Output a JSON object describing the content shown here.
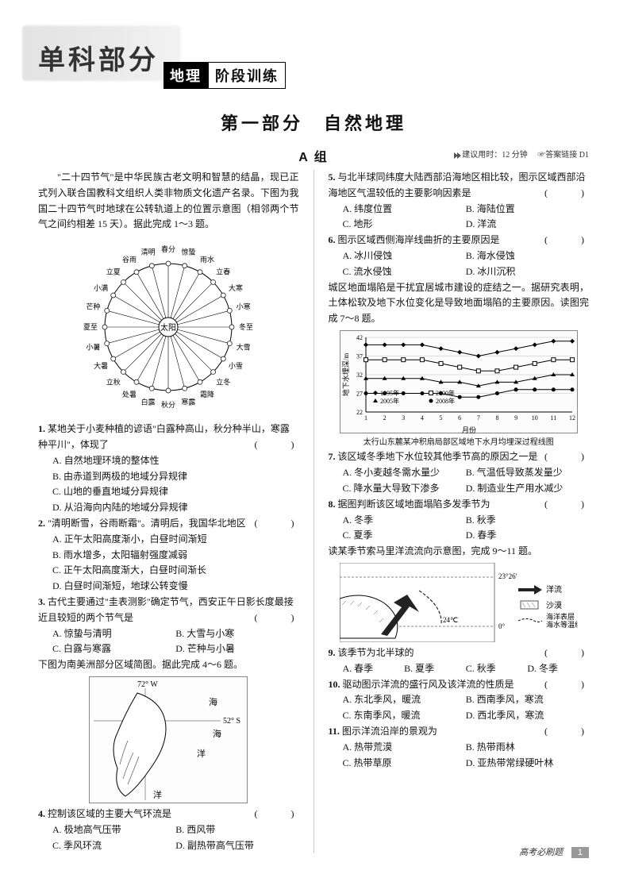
{
  "header": {
    "main": "单科部分",
    "sub_black": "地理",
    "sub_outline": "阶段训练"
  },
  "section_title": "第一部分　自然地理",
  "group_label": "A 组",
  "meta": {
    "time": "建议用时：12 分钟",
    "answer": "☞答案链接 D1"
  },
  "left": {
    "intro": "\"二十四节气\"是中华民族古老文明和智慧的结晶，现已正式列入联合国教科文组织人类非物质文化遗产名录。下图为我国二十四节气时地球在公转轨道上的位置示意图（相邻两个节气之间约相差 15 天）。据此完成 1～3 题。",
    "solar_terms": [
      "春分",
      "惊蛰",
      "雨水",
      "立春",
      "大寒",
      "小寒",
      "冬至",
      "大雪",
      "小雪",
      "立冬",
      "霜降",
      "寒露",
      "秋分",
      "白露",
      "处暑",
      "立秋",
      "大暑",
      "小暑",
      "夏至",
      "芒种",
      "小满",
      "立夏",
      "谷雨",
      "清明"
    ],
    "sun": "太阳",
    "q1": {
      "stem": "某地关于小麦种植的谚语\"白露种高山，秋分种半山，寒露种平川\"，体现了",
      "A": "A. 自然地理环境的整体性",
      "B": "B. 由赤道到两极的地域分异规律",
      "C": "C. 山地的垂直地域分异规律",
      "D": "D. 从沿海向内陆的地域分异规律"
    },
    "q2": {
      "stem": "\"清明断雪，谷雨断霜\"。清明后，我国华北地区",
      "A": "A. 正午太阳高度渐小，白昼时间渐短",
      "B": "B. 雨水增多，太阳辐射强度减弱",
      "C": "C. 正午太阳高度渐大，白昼时间渐长",
      "D": "D. 白昼时间渐短，地球公转变慢"
    },
    "q3": {
      "stem": "古代主要通过\"圭表测影\"确定节气，西安正午日影长度最接近且较短的两个节气是",
      "A": "A. 惊蛰与清明",
      "B": "B. 大雪与小寒",
      "C": "C. 白露与寒露",
      "D": "D. 芒种与小暑"
    },
    "intro2": "下图为南美洲部分区域简图。据此完成 4～6 题。",
    "map1": {
      "lon": "72° W",
      "lat": "52° S",
      "sea": "海",
      "ocean": "洋"
    },
    "q4": {
      "stem": "控制该区域的主要大气环流是",
      "A": "A. 极地高气压带",
      "B": "B. 西风带",
      "C": "C. 季风环流",
      "D": "D. 副热带高气压带"
    }
  },
  "right": {
    "q5": {
      "stem": "与北半球同纬度大陆西部沿海地区相比较，图示区域西部沿海地区气温较低的主要影响因素是",
      "A": "A. 纬度位置",
      "B": "B. 海陆位置",
      "C": "C. 地形",
      "D": "D. 洋流"
    },
    "q6": {
      "stem": "图示区域西侧海岸线曲折的主要原因是",
      "A": "A. 冰川侵蚀",
      "B": "B. 海水侵蚀",
      "C": "C. 流水侵蚀",
      "D": "D. 冰川沉积"
    },
    "intro3": "城区地面塌陷是干扰宜居城市建设的症结之一。据研究表明，土体松软及地下水位变化是导致地面塌陷的主要原因。读图完成 7～8 题。",
    "chart": {
      "ylabel": "地下水埋深/m",
      "xlabel": "月份",
      "caption": "太行山东麓某冲积扇局部区域地下水月均埋深过程线图",
      "months": [
        "1",
        "2",
        "3",
        "4",
        "5",
        "6",
        "7",
        "8",
        "9",
        "10",
        "11",
        "12"
      ],
      "ymin": 22,
      "ymax": 42,
      "ystep": 5,
      "series": [
        {
          "name": "1995年",
          "marker": "diamond",
          "color": "#000",
          "y": [
            40,
            40,
            40,
            40,
            39,
            38,
            37,
            38,
            39,
            40,
            41,
            41
          ]
        },
        {
          "name": "2000年",
          "marker": "square",
          "color": "#000",
          "y": [
            36,
            36,
            36,
            36,
            35,
            34,
            33,
            33,
            34,
            35,
            36,
            36
          ]
        },
        {
          "name": "2005年",
          "marker": "triangle",
          "color": "#000",
          "y": [
            31,
            31,
            31,
            31,
            30,
            30,
            29,
            30,
            30,
            31,
            32,
            32
          ]
        },
        {
          "name": "2008年",
          "marker": "circle",
          "color": "#000",
          "y": [
            27,
            27,
            27,
            27,
            27,
            26,
            26,
            27,
            28,
            28,
            28,
            28
          ]
        }
      ]
    },
    "q7": {
      "stem": "该区域冬季地下水位较其他季节高的原因之一是",
      "A": "A. 冬小麦越冬需水量少",
      "B": "B. 气温低导致蒸发量少",
      "C": "C. 降水量大导致下渗多",
      "D": "D. 制造业生产用水减少"
    },
    "q8": {
      "stem": "据图判断该区域地面塌陷多发季节为",
      "A": "A. 冬季",
      "B": "B. 秋季",
      "C": "C. 夏季",
      "D": "D. 春季"
    },
    "intro4": "读某季节索马里洋流流向示意图，完成 9～11 题。",
    "map2": {
      "lat": "23°26'",
      "isotherm": "24℃",
      "zero": "0°",
      "leg_current": "洋流",
      "leg_desert": "沙漠",
      "leg_iso": "海洋表层\n海水等温线"
    },
    "q9": {
      "stem": "该季节为北半球的",
      "A": "A. 春季",
      "B": "B. 夏季",
      "C": "C. 秋季",
      "D": "D. 冬季"
    },
    "q10": {
      "stem": "驱动图示洋流的盛行风及该洋流的性质是",
      "A": "A. 东北季风，暖流",
      "B": "B. 西南季风，寒流",
      "C": "C. 东南季风，暖流",
      "D": "D. 西北季风，寒流"
    },
    "q11": {
      "stem": "图示洋流沿岸的景观为",
      "A": "A. 热带荒漠",
      "B": "B. 热带雨林",
      "C": "C. 热带草原",
      "D": "D. 亚热带常绿硬叶林"
    }
  },
  "footer": {
    "text": "高考必刷题",
    "page": "1"
  }
}
